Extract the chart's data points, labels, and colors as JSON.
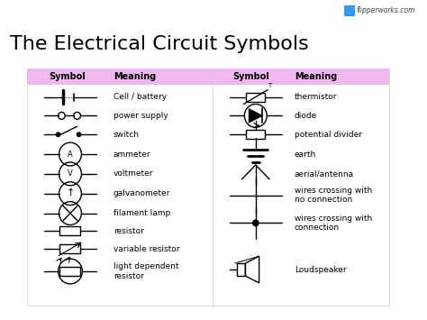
{
  "title": "The Electrical Circuit Symbols",
  "title_fontsize": 16,
  "header_bg": "#f0b8f0",
  "bg_color": "#ffffff",
  "watermark": "flipperworks.com",
  "text_color": "#000000",
  "symbol_color": "#000000",
  "header_text_color": "#000000",
  "left_meanings": [
    "Cell / battery",
    "power supply",
    "switch",
    "ammeter",
    "voltmeter",
    "galvanometer",
    "filament lamp",
    "resistor",
    "variable resistor",
    "light dependent\nresistor"
  ],
  "right_meanings": [
    "thermistor",
    "diode",
    "potential divider",
    "earth",
    "aerial/antenna",
    "wires crossing with\nno connection",
    "wires crossing with\nconnection",
    "Loudspeaker"
  ]
}
